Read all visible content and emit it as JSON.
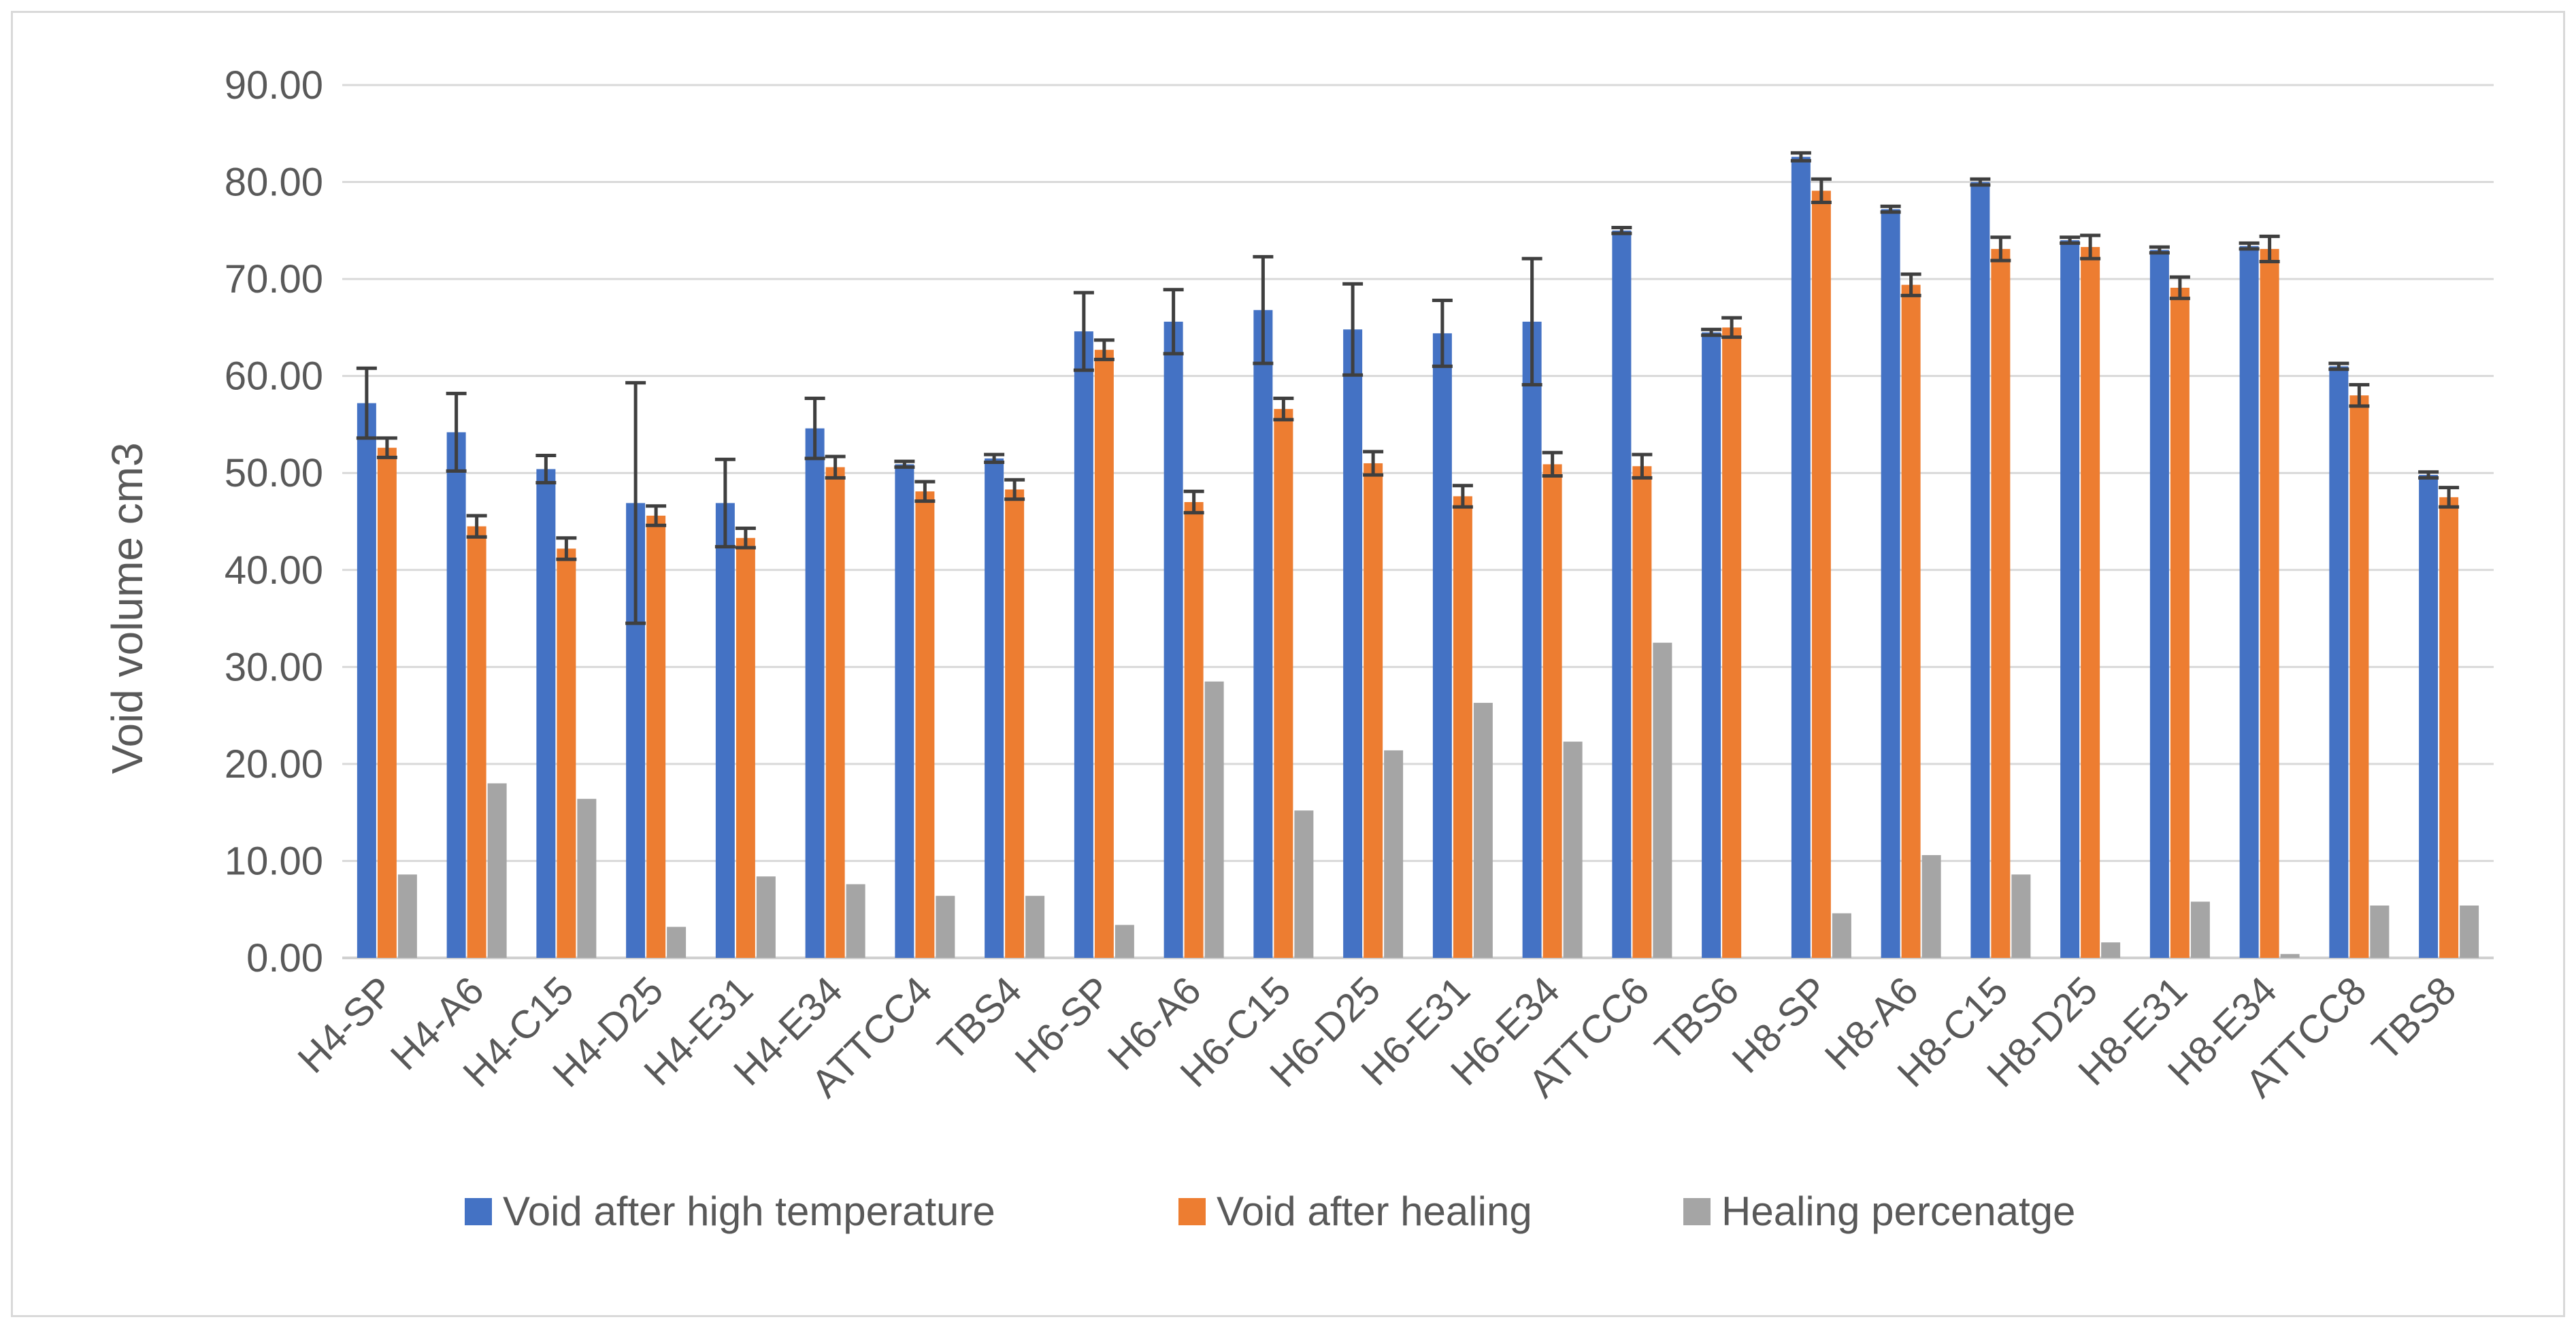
{
  "chart_data": {
    "type": "bar",
    "title": "",
    "xlabel": "",
    "ylabel": "Void volume cm3",
    "ylim": [
      0,
      90
    ],
    "ytick_step": 10,
    "ytick_labels": [
      "0.00",
      "10.00",
      "20.00",
      "30.00",
      "40.00",
      "50.00",
      "60.00",
      "70.00",
      "80.00",
      "90.00"
    ],
    "grid": true,
    "legend_position": "bottom",
    "categories": [
      "H4-SP",
      "H4-A6",
      "H4-C15",
      "H4-D25",
      "H4-E31",
      "H4-E34",
      "ATTCC4",
      "TBS4",
      "H6-SP",
      "H6-A6",
      "H6-C15",
      "H6-D25",
      "H6-E31",
      "H6-E34",
      "ATTCC6",
      "TBS6",
      "H8-SP",
      "H8-A6",
      "H8-C15",
      "H8-D25",
      "H8-E31",
      "H8-E34",
      "ATTCC8",
      "TBS8"
    ],
    "series": [
      {
        "name": "Void after high temperature",
        "color": "#4472c4",
        "values": [
          57.2,
          54.2,
          50.4,
          46.9,
          46.9,
          54.6,
          50.9,
          51.5,
          64.6,
          65.6,
          66.8,
          64.8,
          64.4,
          65.6,
          75.0,
          64.5,
          82.6,
          77.2,
          80.0,
          74.0,
          73.0,
          73.4,
          61.0,
          49.8
        ],
        "errors": [
          3.6,
          4.0,
          1.4,
          12.4,
          4.5,
          3.1,
          0.3,
          0.4,
          4.0,
          3.3,
          5.5,
          4.7,
          3.4,
          6.5,
          0.3,
          0.3,
          0.4,
          0.3,
          0.3,
          0.3,
          0.3,
          0.3,
          0.3,
          0.3
        ]
      },
      {
        "name": "Void after healing",
        "color": "#ed7d31",
        "values": [
          52.6,
          44.5,
          42.2,
          45.6,
          43.3,
          50.6,
          48.1,
          48.3,
          62.7,
          47.0,
          56.6,
          51.0,
          47.6,
          50.9,
          50.7,
          65.0,
          79.1,
          69.4,
          73.1,
          73.3,
          69.1,
          73.1,
          58.0,
          47.5
        ],
        "errors": [
          1.0,
          1.1,
          1.1,
          1.0,
          1.0,
          1.1,
          1.0,
          1.0,
          1.0,
          1.1,
          1.1,
          1.2,
          1.1,
          1.2,
          1.2,
          1.0,
          1.2,
          1.1,
          1.2,
          1.2,
          1.1,
          1.3,
          1.1,
          1.0
        ]
      },
      {
        "name": "Healing percenatge",
        "color": "#a5a5a5",
        "values": [
          8.6,
          18.0,
          16.4,
          3.2,
          8.4,
          7.6,
          6.4,
          6.4,
          3.4,
          28.5,
          15.2,
          21.4,
          26.3,
          22.3,
          32.5,
          0.0,
          4.6,
          10.6,
          8.6,
          1.6,
          5.8,
          0.4,
          5.4,
          5.4
        ],
        "errors": []
      }
    ]
  }
}
